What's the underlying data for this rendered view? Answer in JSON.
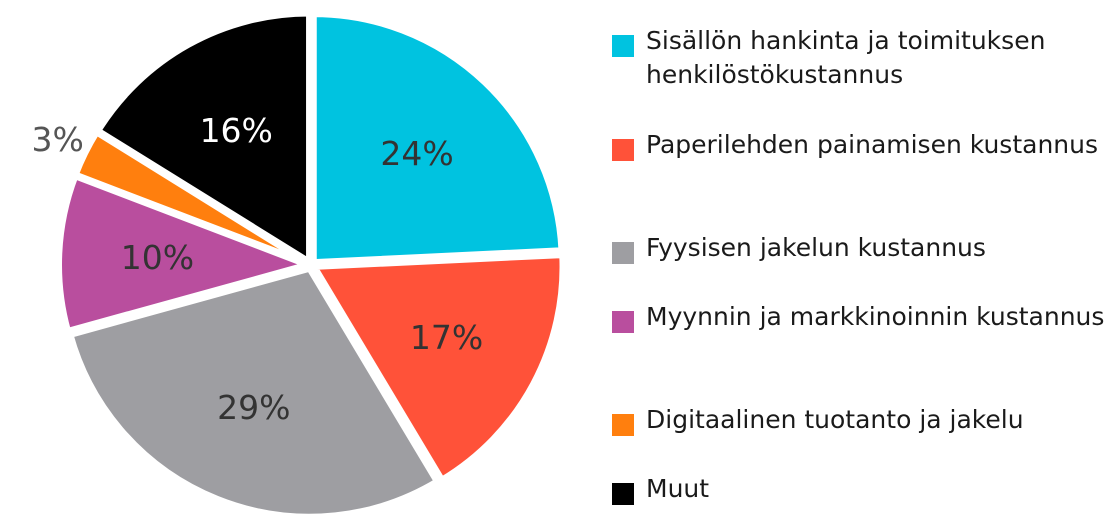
{
  "chart_data": {
    "type": "pie",
    "title": "",
    "start_angle_deg": 0,
    "legend_position": "right",
    "slices": [
      {
        "label": "Sisällön hankinta ja toimituksen henkilöstökustannus",
        "value": 24,
        "display": "24%",
        "color": "#00C3E0",
        "label_color": "#333333",
        "label_inside": true
      },
      {
        "label": "Paperilehden painamisen kustannus",
        "value": 17,
        "display": "17%",
        "color": "#FF5239",
        "label_color": "#333333",
        "label_inside": true
      },
      {
        "label": "Fyysisen jakelun kustannus",
        "value": 29,
        "display": "29%",
        "color": "#9E9EA2",
        "label_color": "#333333",
        "label_inside": true
      },
      {
        "label": "Myynnin ja markkinoinnin kustannus",
        "value": 10,
        "display": "10%",
        "color": "#B94E9E",
        "label_color": "#333333",
        "label_inside": true
      },
      {
        "label": "Digitaalinen tuotanto ja jakelu",
        "value": 3,
        "display": "3%",
        "color": "#FF7F0E",
        "label_color": "#555555",
        "label_inside": false
      },
      {
        "label": "Muut",
        "value": 16,
        "display": "16%",
        "color": "#000000",
        "label_color": "#ffffff",
        "label_inside": true
      }
    ]
  }
}
